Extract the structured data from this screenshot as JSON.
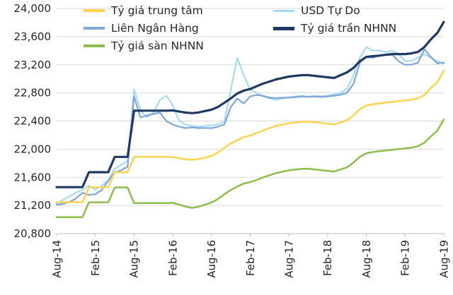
{
  "page": {
    "background": "#ffffff",
    "text_color": "#262626",
    "grid_color": "#d9d9d9",
    "axis_color": "#bfbfbf"
  },
  "chart_data": {
    "type": "line",
    "title": "",
    "xlabel": "",
    "ylabel": "",
    "grid": true,
    "legend_position": "top",
    "ylim": [
      20800,
      24000
    ],
    "yticks": {
      "values": [
        20800,
        21200,
        21600,
        22000,
        22400,
        22800,
        23200,
        23600,
        24000
      ],
      "labels": [
        "20,800",
        "21,200",
        "21,600",
        "22,000",
        "22,400",
        "22,800",
        "23,200",
        "23,600",
        "24,000"
      ]
    },
    "xticks": [
      {
        "label": "Aug-14",
        "index": 0
      },
      {
        "label": "Feb-15",
        "index": 6
      },
      {
        "label": "Aug-15",
        "index": 12
      },
      {
        "label": "Feb-16",
        "index": 18
      },
      {
        "label": "Aug-16",
        "index": 24
      },
      {
        "label": "Feb-17",
        "index": 30
      },
      {
        "label": "Aug-17",
        "index": 36
      },
      {
        "label": "Feb-18",
        "index": 42
      },
      {
        "label": "Aug-18",
        "index": 48
      },
      {
        "label": "Feb-19",
        "index": 54
      },
      {
        "label": "Aug-19",
        "index": 60
      }
    ],
    "x_unit": "monthly points from Aug-2014 to Aug-2019",
    "draw_order": [
      1,
      2,
      0,
      4,
      3
    ],
    "series": [
      {
        "name": "Tỷ giá trung tâm",
        "color": "#FFD34F",
        "width": 2.5,
        "values": [
          21246,
          21246,
          21246,
          21246,
          21246,
          21458,
          21458,
          21458,
          21458,
          21673,
          21673,
          21673,
          21890,
          21890,
          21890,
          21890,
          21890,
          21890,
          21886,
          21870,
          21858,
          21848,
          21860,
          21878,
          21905,
          21950,
          22020,
          22080,
          22130,
          22170,
          22195,
          22230,
          22265,
          22300,
          22330,
          22350,
          22370,
          22380,
          22390,
          22392,
          22385,
          22375,
          22362,
          22352,
          22380,
          22415,
          22480,
          22570,
          22620,
          22640,
          22650,
          22662,
          22672,
          22682,
          22692,
          22702,
          22722,
          22770,
          22870,
          22955,
          23115
        ]
      },
      {
        "name": "USD Tự Do",
        "color": "#9FD9F3",
        "width": 2,
        "values": [
          21230,
          21280,
          21330,
          21385,
          21420,
          21480,
          21425,
          21480,
          21560,
          21720,
          21780,
          21830,
          22850,
          22550,
          22450,
          22520,
          22700,
          22760,
          22620,
          22400,
          22350,
          22330,
          22320,
          22330,
          22340,
          22355,
          22390,
          22850,
          23300,
          23050,
          22850,
          22800,
          22750,
          22720,
          22700,
          22720,
          22740,
          22750,
          22758,
          22750,
          22760,
          22752,
          22760,
          22780,
          22800,
          22855,
          23050,
          23300,
          23450,
          23400,
          23405,
          23380,
          23400,
          23350,
          23250,
          23255,
          23300,
          23350,
          23300,
          23250,
          23215
        ]
      },
      {
        "name": "Liên Ngân Hàng",
        "color": "#7EA6D8",
        "width": 2.2,
        "values": [
          21210,
          21222,
          21250,
          21300,
          21380,
          21350,
          21360,
          21420,
          21550,
          21670,
          21700,
          21750,
          22750,
          22450,
          22480,
          22500,
          22520,
          22400,
          22350,
          22320,
          22300,
          22310,
          22300,
          22302,
          22300,
          22320,
          22350,
          22600,
          22720,
          22650,
          22750,
          22770,
          22758,
          22732,
          22728,
          22730,
          22732,
          22740,
          22750,
          22742,
          22748,
          22742,
          22750,
          22760,
          22772,
          22800,
          22930,
          23230,
          23310,
          23300,
          23330,
          23340,
          23342,
          23250,
          23200,
          23202,
          23230,
          23420,
          23310,
          23220,
          23232
        ]
      },
      {
        "name": "Tỷ giá trần NHNN",
        "color": "#1F3864",
        "width": 3.2,
        "values": [
          21460,
          21460,
          21460,
          21460,
          21460,
          21673,
          21673,
          21673,
          21673,
          21890,
          21890,
          21890,
          22547,
          22547,
          22547,
          22547,
          22547,
          22547,
          22550,
          22535,
          22520,
          22512,
          22522,
          22542,
          22562,
          22600,
          22660,
          22722,
          22792,
          22832,
          22855,
          22895,
          22933,
          22962,
          22992,
          23012,
          23032,
          23042,
          23052,
          23052,
          23042,
          23032,
          23022,
          23012,
          23052,
          23092,
          23155,
          23252,
          23312,
          23322,
          23330,
          23342,
          23352,
          23352,
          23352,
          23362,
          23382,
          23452,
          23562,
          23652,
          23808
        ]
      },
      {
        "name": "Tỷ giá sàn NHNN",
        "color": "#8CBE4C",
        "width": 2.5,
        "values": [
          21034,
          21034,
          21034,
          21034,
          21034,
          21243,
          21243,
          21243,
          21243,
          21456,
          21456,
          21456,
          21233,
          21233,
          21233,
          21233,
          21233,
          21233,
          21236,
          21212,
          21185,
          21165,
          21182,
          21212,
          21242,
          21292,
          21360,
          21420,
          21470,
          21510,
          21532,
          21562,
          21598,
          21630,
          21660,
          21680,
          21700,
          21710,
          21720,
          21722,
          21712,
          21702,
          21692,
          21682,
          21712,
          21742,
          21810,
          21892,
          21942,
          21960,
          21972,
          21982,
          21992,
          22002,
          22012,
          22022,
          22042,
          22092,
          22182,
          22262,
          22422
        ]
      }
    ]
  }
}
